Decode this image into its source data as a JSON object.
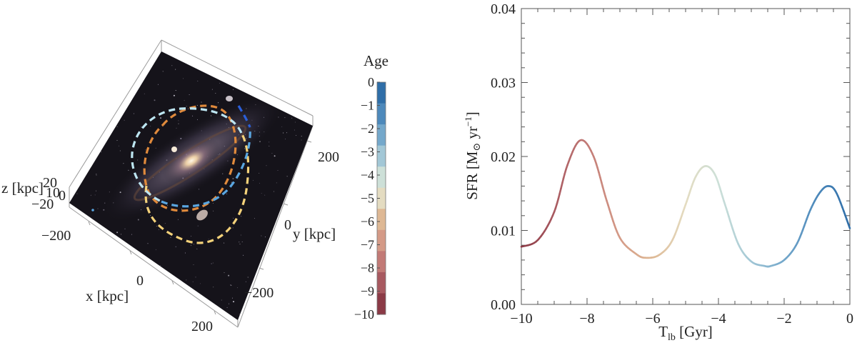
{
  "left_panel": {
    "x_axis_label": "x [kpc]",
    "y_axis_label": "y [kpc]",
    "z_axis_label": "z [kpc]",
    "x_ticks": [
      "−200",
      "0",
      "200"
    ],
    "y_ticks": [
      "200",
      "0",
      "−200"
    ],
    "z_ticks": [
      "20",
      "10",
      "0",
      "−20"
    ],
    "orbits": [
      {
        "color": "#e08a3c",
        "age_range": [
          -10,
          -7
        ]
      },
      {
        "color": "#f4d27a",
        "age_range": [
          -7,
          -4
        ]
      },
      {
        "color": "#bde6f2",
        "age_range": [
          -4,
          -2
        ]
      },
      {
        "color": "#5aa6e0",
        "age_range": [
          -2,
          -1
        ]
      },
      {
        "color": "#2b5fd9",
        "age_range": [
          -1,
          0
        ]
      }
    ]
  },
  "colorbar": {
    "title": "Age",
    "ticks": [
      "0",
      "−1",
      "−2",
      "−3",
      "−4",
      "−5",
      "−6",
      "−7",
      "−8",
      "−9",
      "−10"
    ],
    "colors": [
      "#2f6ea8",
      "#4d89bb",
      "#74a8cb",
      "#a2c7d6",
      "#cde0d8",
      "#e4dcc1",
      "#deb894",
      "#d49a87",
      "#c27a76",
      "#a85960",
      "#8b3a46"
    ]
  },
  "chart_data": [
    {
      "type": "line",
      "title": "",
      "xlabel": "T_lb [Gyr]",
      "ylabel": "SFR [M_⊙ yr^-1]",
      "xlim": [
        -10,
        0
      ],
      "ylim": [
        0,
        0.04
      ],
      "xticks": [
        -10,
        -8,
        -6,
        -4,
        -2,
        0
      ],
      "xtick_labels": [
        "−10",
        "−8",
        "−6",
        "−4",
        "−2",
        "0"
      ],
      "yticks": [
        0,
        0.01,
        0.02,
        0.03,
        0.04
      ],
      "ytick_labels": [
        "0.00",
        "0.01",
        "0.02",
        "0.03",
        "0.04"
      ],
      "color_by": "age (T_lb), same colormap as colorbar",
      "series": [
        {
          "x": [
            -10,
            -9.5,
            -9,
            -8.6,
            -8.2,
            -7.8,
            -7.4,
            -7,
            -6.5,
            -6.2,
            -5.8,
            -5.4,
            -5,
            -4.7,
            -4.4,
            -4.1,
            -3.8,
            -3.4,
            -3,
            -2.6,
            -2.4,
            -2,
            -1.6,
            -1.2,
            -0.9,
            -0.65,
            -0.4,
            0
          ],
          "y": [
            0.0078,
            0.0087,
            0.0125,
            0.0188,
            0.0222,
            0.02,
            0.014,
            0.009,
            0.0068,
            0.0063,
            0.0067,
            0.0087,
            0.0135,
            0.0172,
            0.0187,
            0.0175,
            0.0135,
            0.0082,
            0.0058,
            0.0052,
            0.0052,
            0.006,
            0.0083,
            0.0128,
            0.0152,
            0.016,
            0.015,
            0.0103
          ]
        }
      ]
    }
  ]
}
